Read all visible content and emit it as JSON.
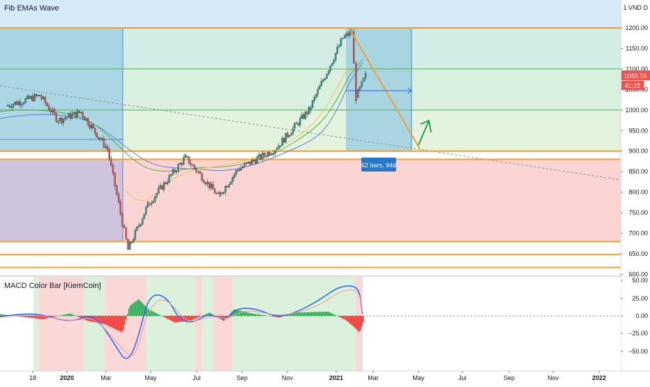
{
  "chart_data": [
    {
      "type": "candlestick",
      "title": "Fib EMAs Wave",
      "price_unit": "1 VND D",
      "x_ticks": [
        "18",
        "2020",
        "Mar",
        "May",
        "Jul",
        "Sep",
        "Nov",
        "2021",
        "Mar",
        "May",
        "Jul",
        "Sep",
        "Nov",
        "2022"
      ],
      "y_ticks": [
        1200,
        1150,
        1100,
        1050,
        1000,
        950,
        900,
        850,
        800,
        750,
        700,
        650,
        600
      ],
      "ylim": [
        600,
        1225
      ],
      "last_price_label": "1083.15",
      "countdown_label": "41:22",
      "measure_label": "62 bars, 94d",
      "horizontal_levels": [
        1200,
        1100,
        1000,
        900,
        880,
        680,
        648,
        617
      ],
      "trend_path": [
        {
          "date": "2021-01-20",
          "price": 1195
        },
        {
          "date": "2021-04-25",
          "price": 905
        }
      ],
      "close_path": [
        {
          "date": "2019-10-10",
          "price": 1010
        },
        {
          "date": "2019-11-25",
          "price": 1035
        },
        {
          "date": "2019-12-20",
          "price": 975
        },
        {
          "date": "2020-01-20",
          "price": 995
        },
        {
          "date": "2020-02-25",
          "price": 905
        },
        {
          "date": "2020-03-24",
          "price": 660
        },
        {
          "date": "2020-04-20",
          "price": 770
        },
        {
          "date": "2020-06-10",
          "price": 885
        },
        {
          "date": "2020-07-25",
          "price": 790
        },
        {
          "date": "2020-08-20",
          "price": 855
        },
        {
          "date": "2020-10-10",
          "price": 905
        },
        {
          "date": "2020-11-25",
          "price": 1000
        },
        {
          "date": "2021-01-10",
          "price": 1175
        },
        {
          "date": "2021-01-22",
          "price": 1190
        },
        {
          "date": "2021-01-28",
          "price": 1030
        },
        {
          "date": "2021-02-10",
          "price": 1083
        }
      ]
    },
    {
      "type": "histogram",
      "title": "MACD Color Bar [KiemCoin]",
      "y_ticks": [
        "50.00",
        "25.00",
        "0.00",
        "−25.00",
        "−50.00"
      ],
      "ylim": [
        -60,
        55
      ]
    }
  ]
}
